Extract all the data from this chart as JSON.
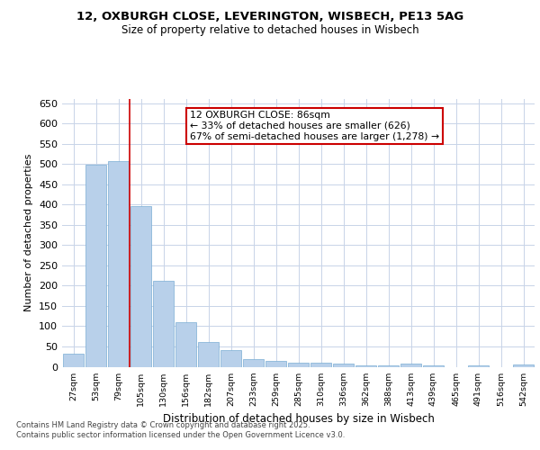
{
  "title_line1": "12, OXBURGH CLOSE, LEVERINGTON, WISBECH, PE13 5AG",
  "title_line2": "Size of property relative to detached houses in Wisbech",
  "xlabel": "Distribution of detached houses by size in Wisbech",
  "ylabel": "Number of detached properties",
  "footer_line1": "Contains HM Land Registry data © Crown copyright and database right 2025.",
  "footer_line2": "Contains public sector information licensed under the Open Government Licence v3.0.",
  "categories": [
    "27sqm",
    "53sqm",
    "79sqm",
    "105sqm",
    "130sqm",
    "156sqm",
    "182sqm",
    "207sqm",
    "233sqm",
    "259sqm",
    "285sqm",
    "310sqm",
    "336sqm",
    "362sqm",
    "388sqm",
    "413sqm",
    "439sqm",
    "465sqm",
    "491sqm",
    "516sqm",
    "542sqm"
  ],
  "values": [
    33,
    498,
    507,
    395,
    212,
    110,
    62,
    40,
    18,
    15,
    10,
    9,
    7,
    3,
    3,
    7,
    3,
    0,
    4,
    0,
    5
  ],
  "bar_color": "#b8d0ea",
  "bar_edge_color": "#7aadd4",
  "background_color": "#ffffff",
  "grid_color": "#c8d4e8",
  "annotation_text": "12 OXBURGH CLOSE: 86sqm\n← 33% of detached houses are smaller (626)\n67% of semi-detached houses are larger (1,278) →",
  "annotation_box_color": "#ffffff",
  "annotation_box_edge_color": "#cc0000",
  "vline_x_index": 2,
  "vline_color": "#cc0000",
  "ylim": [
    0,
    660
  ],
  "yticks": [
    0,
    50,
    100,
    150,
    200,
    250,
    300,
    350,
    400,
    450,
    500,
    550,
    600,
    650
  ]
}
